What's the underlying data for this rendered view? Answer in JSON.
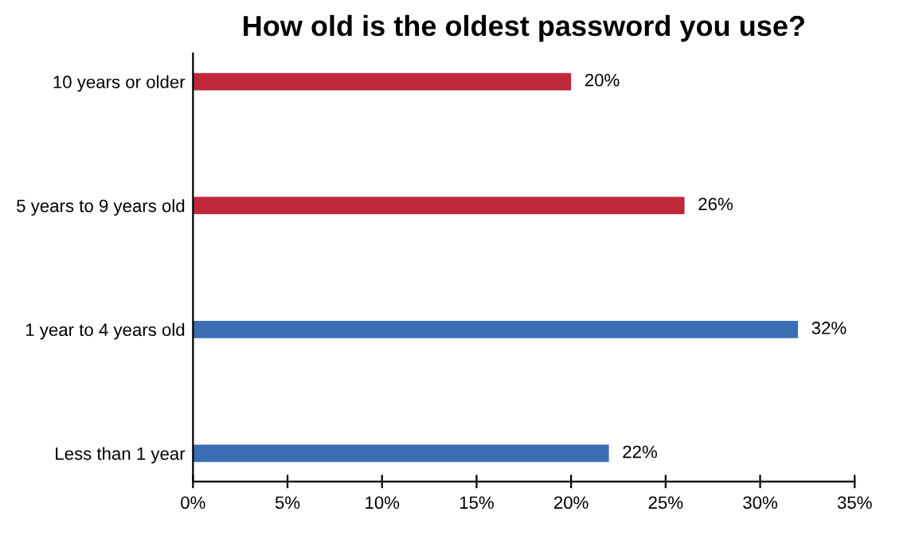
{
  "chart_data": {
    "type": "bar",
    "orientation": "horizontal",
    "title": "How old is the oldest password you use?",
    "categories": [
      "10 years or older",
      "5 years to 9 years old",
      "1 year to 4 years old",
      "Less than 1 year"
    ],
    "values": [
      20,
      26,
      32,
      22
    ],
    "colors": [
      "#c0283c",
      "#c0283c",
      "#3b6db5",
      "#3b6db5"
    ],
    "value_labels": [
      "20%",
      "26%",
      "32%",
      "22%"
    ],
    "xlim": [
      0,
      35
    ],
    "xticks": [
      {
        "value": 0,
        "label": "0%"
      },
      {
        "value": 5,
        "label": "5%"
      },
      {
        "value": 10,
        "label": "10%"
      },
      {
        "value": 15,
        "label": "15%"
      },
      {
        "value": 20,
        "label": "20%"
      },
      {
        "value": 25,
        "label": "25%"
      },
      {
        "value": 30,
        "label": "30%"
      },
      {
        "value": 35,
        "label": "35%"
      }
    ],
    "grid": false,
    "legend": false
  }
}
